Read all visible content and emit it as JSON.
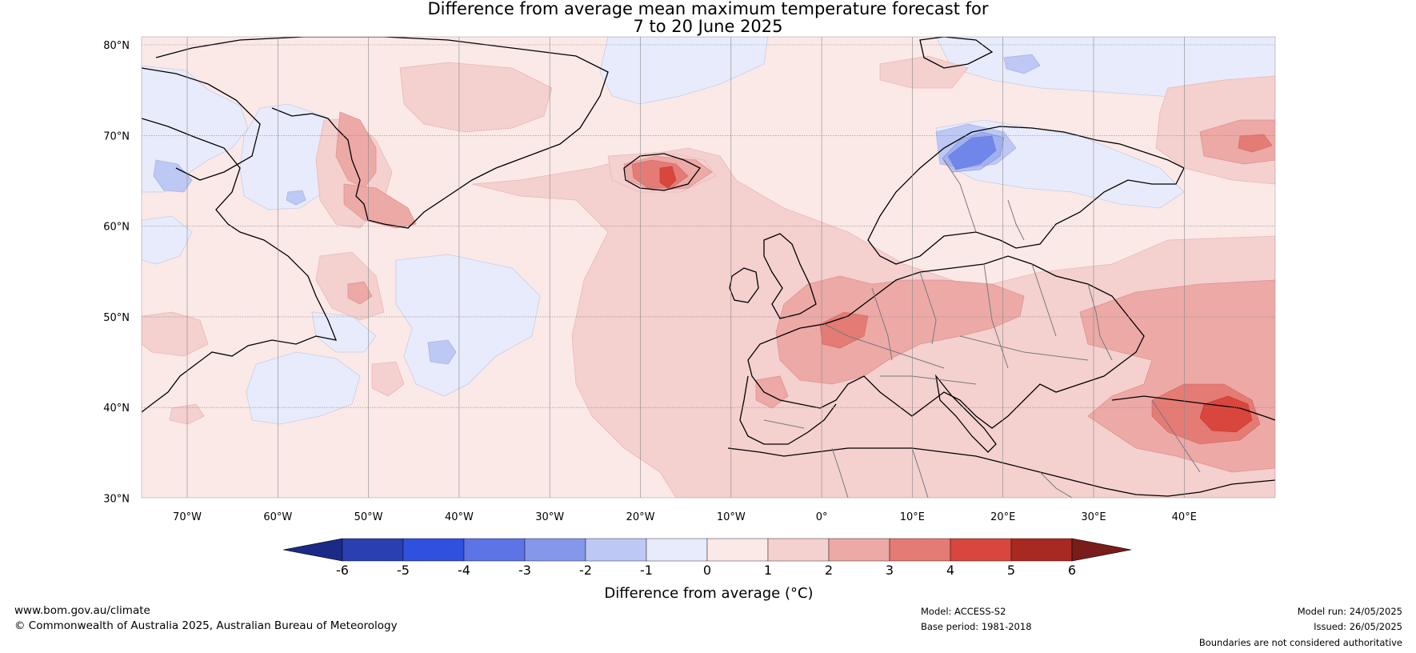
{
  "title": {
    "line1": "Difference from average mean maximum temperature forecast for",
    "line2": "7 to 20 June 2025"
  },
  "map": {
    "lat_labels": [
      "80°N",
      "70°N",
      "60°N",
      "50°N",
      "40°N",
      "30°N"
    ],
    "lon_labels": [
      "70°W",
      "60°W",
      "50°W",
      "40°W",
      "30°W",
      "20°W",
      "10°W",
      "0°",
      "10°E",
      "20°E",
      "30°E",
      "40°E"
    ],
    "base_anomaly_color": "#fbe9e7",
    "gridline_color": "#888888"
  },
  "colorbar": {
    "ticks": [
      "-6",
      "-5",
      "-4",
      "-3",
      "-2",
      "-1",
      "0",
      "1",
      "2",
      "3",
      "4",
      "5",
      "6"
    ],
    "label": "Difference from average (°C)",
    "colors": {
      "below_min": "#1b2a86",
      "bins": [
        "#2a3fb1",
        "#3050de",
        "#5c74e6",
        "#8597eb",
        "#bec8f4",
        "#e8ebfb",
        "#fbe9e7",
        "#f4d0cf",
        "#eca9a6",
        "#e47b74",
        "#d8463d",
        "#a82822"
      ],
      "above_max": "#7a1c19"
    }
  },
  "footer": {
    "url": "www.bom.gov.au/climate",
    "copyright": "© Commonwealth of Australia 2025, Australian Bureau of Meteorology",
    "model": "Model: ACCESS-S2",
    "base_period": "Base period: 1981-2018",
    "model_run": "Model run: 24/05/2025",
    "issued": "Issued: 26/05/2025",
    "boundaries": "Boundaries are not considered authoritative"
  }
}
